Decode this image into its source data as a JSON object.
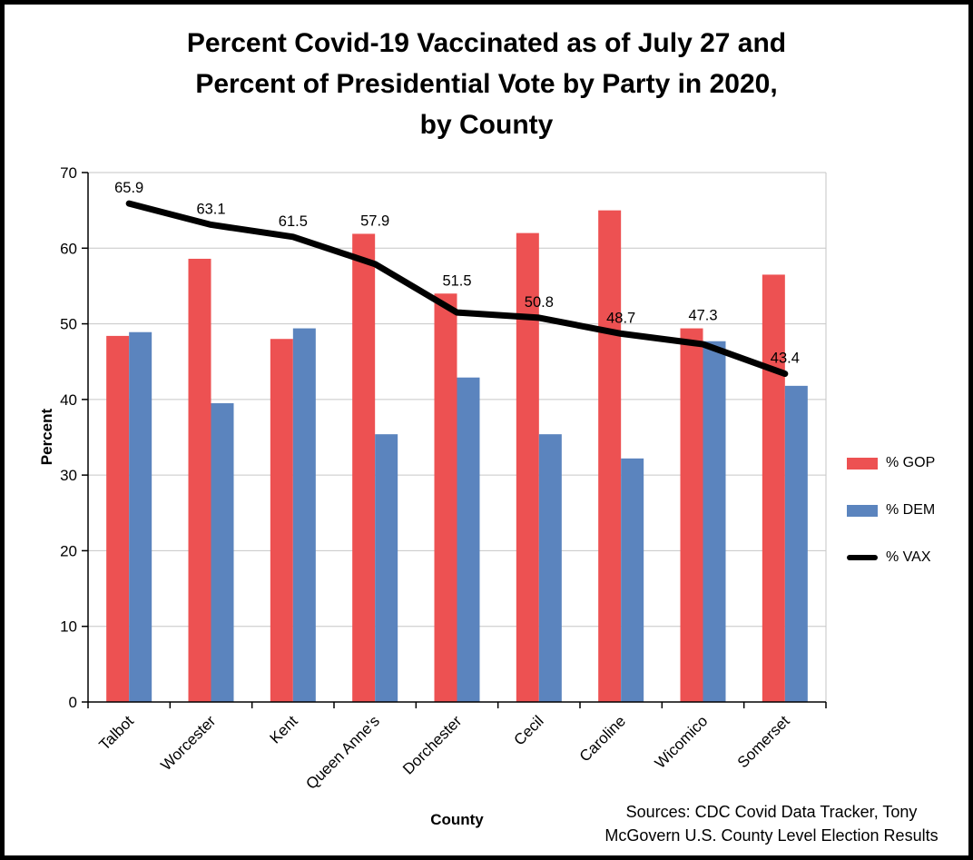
{
  "chart_data": {
    "type": "bar",
    "title": "Percent Covid-19 Vaccinated as of July 27 and Percent of Presidential Vote by Party in 2020, by County",
    "title_lines": [
      "Percent Covid-19 Vaccinated as of July 27 and",
      "Percent of Presidential Vote by Party in 2020,",
      "by County"
    ],
    "categories": [
      "Talbot",
      "Worcester",
      "Kent",
      "Queen Anne's",
      "Dorchester",
      "Cecil",
      "Caroline",
      "Wicomico",
      "Somerset"
    ],
    "series": [
      {
        "name": "% GOP",
        "type": "bar",
        "color": "#ED5152",
        "values": [
          48.4,
          58.6,
          48.0,
          61.9,
          54.0,
          62.0,
          65.0,
          49.4,
          56.5
        ]
      },
      {
        "name": "% DEM",
        "type": "bar",
        "color": "#5B84BE",
        "values": [
          48.9,
          39.5,
          49.4,
          35.4,
          42.9,
          35.4,
          32.2,
          47.7,
          41.8
        ]
      },
      {
        "name": "% VAX",
        "type": "line",
        "color": "#000000",
        "values": [
          65.9,
          63.1,
          61.5,
          57.9,
          51.5,
          50.8,
          48.7,
          47.3,
          43.4
        ],
        "data_labels": true
      }
    ],
    "xlabel": "County",
    "ylabel": "Percent",
    "ylim": [
      0,
      70
    ],
    "ytick_step": 10,
    "grid": true,
    "legend_position": "right",
    "source_lines": [
      "Sources: CDC Covid Data Tracker, Tony",
      "McGovern U.S. County Level Election Results"
    ]
  },
  "colors": {
    "grid": "#C6C6C6",
    "axis": "#000000",
    "background": "#FFFFFF"
  }
}
